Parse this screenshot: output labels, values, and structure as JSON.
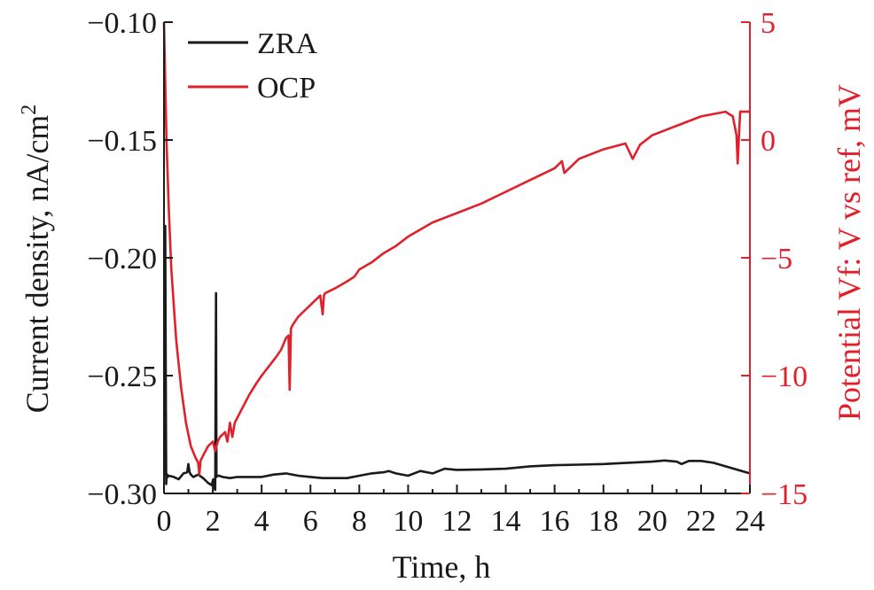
{
  "chart_data": {
    "type": "line",
    "xlabel": "Time, h",
    "ylabel_left": "Current density, nA/cm",
    "ylabel_left_sup": "2",
    "ylabel_right": "Potential Vf: V vs ref, mV",
    "xlim": [
      0,
      24
    ],
    "ylim_left": [
      -0.3,
      -0.1
    ],
    "ylim_right": [
      -15,
      5
    ],
    "x_ticks": [
      0,
      2,
      4,
      6,
      8,
      10,
      12,
      14,
      16,
      18,
      20,
      22,
      24
    ],
    "x_tick_labels": [
      "0",
      "2",
      "4",
      "6",
      "8",
      "10",
      "12",
      "14",
      "16",
      "18",
      "20",
      "22",
      "24"
    ],
    "y_left_ticks": [
      -0.3,
      -0.25,
      -0.2,
      -0.15,
      -0.1
    ],
    "y_left_tick_labels": [
      "−0.30",
      "−0.25",
      "−0.20",
      "−0.15",
      "−0.10"
    ],
    "y_right_ticks": [
      -15,
      -10,
      -5,
      0,
      5
    ],
    "y_right_tick_labels": [
      "−15",
      "−10",
      "−5",
      "0",
      "5"
    ],
    "grid": false,
    "legend_position": "top-left",
    "colors": {
      "ZRA": "#1a1a1a",
      "OCP": "#e0202a"
    },
    "series": [
      {
        "name": "ZRA",
        "axis": "left",
        "color": "#1a1a1a",
        "x": [
          0.0,
          0.03,
          0.05,
          0.07,
          0.09,
          0.11,
          0.13,
          0.15,
          0.2,
          0.4,
          0.6,
          0.8,
          0.95,
          1.0,
          1.05,
          1.1,
          1.2,
          1.4,
          1.6,
          1.8,
          1.95,
          2.02,
          2.05,
          2.1,
          2.13,
          2.15,
          2.2,
          2.25,
          2.4,
          2.7,
          3.0,
          3.5,
          4.0,
          4.5,
          5.0,
          5.5,
          6.0,
          6.5,
          7.0,
          7.5,
          8.0,
          8.5,
          9.0,
          9.2,
          9.5,
          10.0,
          10.5,
          11.0,
          11.5,
          12.0,
          13.0,
          14.0,
          15.0,
          16.0,
          17.0,
          18.0,
          19.0,
          20.0,
          20.5,
          21.0,
          21.2,
          21.5,
          22.0,
          22.5,
          23.0,
          23.5,
          24.0
        ],
        "values": [
          -0.292,
          -0.292,
          -0.1865,
          -0.24,
          -0.296,
          -0.292,
          -0.292,
          -0.293,
          -0.2925,
          -0.293,
          -0.294,
          -0.2915,
          -0.291,
          -0.2875,
          -0.291,
          -0.292,
          -0.293,
          -0.292,
          -0.2935,
          -0.2955,
          -0.2965,
          -0.294,
          -0.297,
          -0.2985,
          -0.215,
          -0.293,
          -0.2925,
          -0.2925,
          -0.293,
          -0.2935,
          -0.293,
          -0.293,
          -0.293,
          -0.292,
          -0.2915,
          -0.2925,
          -0.293,
          -0.2935,
          -0.2935,
          -0.2935,
          -0.2925,
          -0.2915,
          -0.291,
          -0.2905,
          -0.2915,
          -0.2925,
          -0.2905,
          -0.2915,
          -0.2895,
          -0.29,
          -0.2898,
          -0.2895,
          -0.2885,
          -0.288,
          -0.2878,
          -0.2875,
          -0.287,
          -0.2865,
          -0.286,
          -0.2865,
          -0.2875,
          -0.2862,
          -0.2862,
          -0.287,
          -0.2885,
          -0.29,
          -0.2915
        ]
      },
      {
        "name": "OCP",
        "axis": "right",
        "color": "#e0202a",
        "x": [
          0.0,
          0.05,
          0.1,
          0.2,
          0.3,
          0.5,
          0.7,
          0.9,
          1.1,
          1.3,
          1.4,
          1.45,
          1.5,
          1.6,
          1.8,
          2.0,
          2.1,
          2.15,
          2.2,
          2.3,
          2.5,
          2.6,
          2.7,
          2.8,
          2.9,
          3.0,
          3.2,
          3.5,
          3.8,
          4.0,
          4.3,
          4.6,
          4.8,
          5.0,
          5.1,
          5.15,
          5.2,
          5.25,
          5.3,
          5.5,
          6.0,
          6.4,
          6.5,
          6.55,
          6.6,
          7.0,
          7.5,
          7.8,
          8.0,
          8.5,
          9.0,
          9.5,
          10.0,
          10.5,
          11.0,
          12.0,
          13.0,
          14.0,
          15.0,
          16.0,
          16.3,
          16.4,
          17.0,
          18.0,
          18.9,
          19.2,
          19.5,
          20.0,
          21.0,
          22.0,
          23.0,
          23.3,
          23.45,
          23.5,
          23.6,
          24.0
        ],
        "values": [
          5.0,
          2.5,
          0.0,
          -3.0,
          -5.5,
          -8.5,
          -10.5,
          -12.0,
          -13.0,
          -13.5,
          -13.7,
          -14.2,
          -13.6,
          -13.4,
          -13.0,
          -12.8,
          -13.2,
          -13.0,
          -12.8,
          -12.6,
          -12.4,
          -12.8,
          -12.0,
          -12.6,
          -12.0,
          -11.8,
          -11.4,
          -10.8,
          -10.3,
          -10.0,
          -9.6,
          -9.2,
          -8.9,
          -8.4,
          -8.3,
          -10.6,
          -8.0,
          -7.9,
          -7.8,
          -7.5,
          -7.0,
          -6.6,
          -7.4,
          -6.6,
          -6.5,
          -6.3,
          -6.0,
          -5.8,
          -5.5,
          -5.2,
          -4.8,
          -4.5,
          -4.1,
          -3.8,
          -3.5,
          -3.1,
          -2.7,
          -2.2,
          -1.7,
          -1.2,
          -0.9,
          -1.4,
          -0.8,
          -0.4,
          -0.15,
          -0.8,
          -0.2,
          0.2,
          0.6,
          1.0,
          1.2,
          1.0,
          0.2,
          -1.0,
          1.2,
          1.2
        ]
      }
    ]
  }
}
